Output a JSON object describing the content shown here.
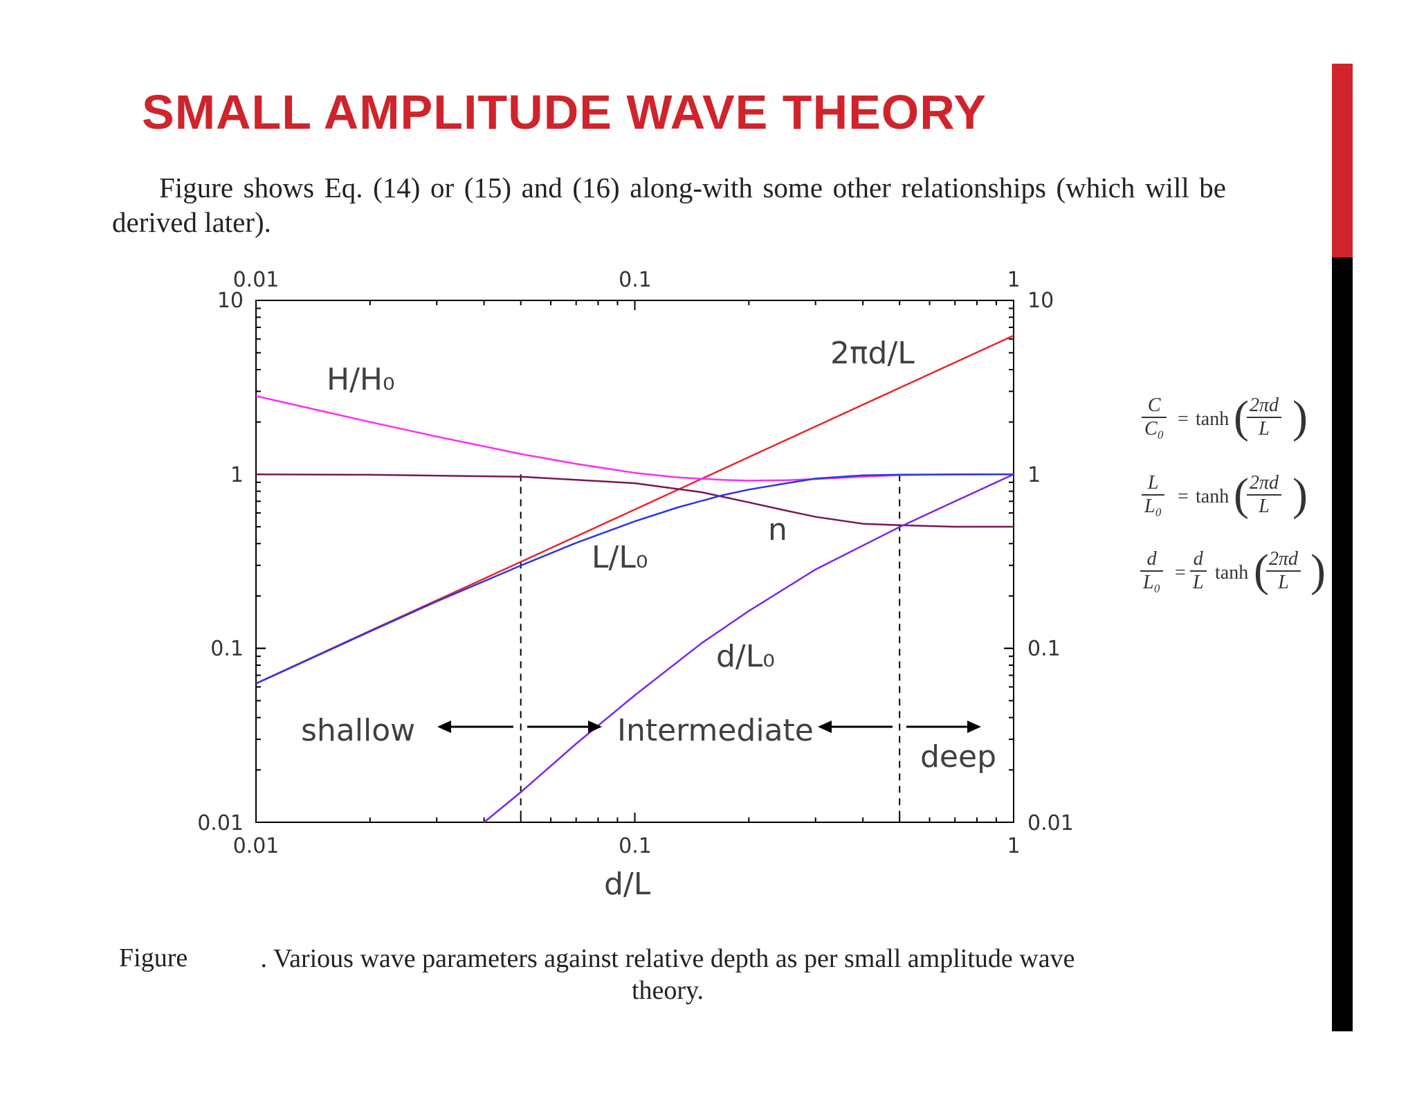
{
  "slide": {
    "title": "SMALL AMPLITUDE WAVE THEORY",
    "intro": "Figure shows Eq. (14) or (15) and (16) along-with some other relationships (which will be derived later).",
    "caption_label": "Figure",
    "caption_text": ". Various wave parameters against relative depth as per small amplitude wave theory.",
    "accent_color": "#d0232b",
    "sidebar_colors": [
      "#d0232b",
      "#000000"
    ]
  },
  "equations": {
    "eq1": {
      "lhs_num": "C",
      "lhs_den": "C₀",
      "eq": "=",
      "func": "tanh",
      "arg_num": "2πd",
      "arg_den": "L"
    },
    "eq2": {
      "lhs_num": "L",
      "lhs_den": "L₀",
      "eq": "=",
      "func": "tanh",
      "arg_num": "2πd",
      "arg_den": "L"
    },
    "eq3": {
      "lhs_num": "d",
      "lhs_den": "L₀",
      "eq": "=",
      "mid_num": "d",
      "mid_den": "L",
      "func": "tanh",
      "arg_num": "2πd",
      "arg_den": "L"
    }
  },
  "chart_data": {
    "type": "line",
    "scale": "log-log",
    "xlabel": "d/L",
    "xlim": [
      0.01,
      1
    ],
    "ylim": [
      0.01,
      10
    ],
    "x_ticks": [
      "0.01",
      "0.1",
      "1"
    ],
    "x_ticks_top": [
      "0.01",
      "0.1",
      "1"
    ],
    "y_ticks_left": [
      "10",
      "1",
      "0.1",
      "0.01"
    ],
    "y_ticks_right": [
      "10",
      "1",
      "0.1",
      "0.01"
    ],
    "grid": false,
    "series": [
      {
        "name": "2πd/L",
        "color": "#e8262b",
        "x": [
          0.01,
          0.02,
          0.05,
          0.1,
          0.2,
          0.5,
          1
        ],
        "y": [
          0.0628,
          0.126,
          0.314,
          0.628,
          1.257,
          3.14,
          6.28
        ]
      },
      {
        "name": "H/H₀",
        "color": "#ff2cf2",
        "x": [
          0.01,
          0.02,
          0.03,
          0.05,
          0.07,
          0.1,
          0.13,
          0.17,
          0.2,
          0.25,
          0.3,
          0.4,
          0.5,
          0.7,
          1
        ],
        "y": [
          2.82,
          2.0,
          1.65,
          1.31,
          1.15,
          1.02,
          0.96,
          0.93,
          0.92,
          0.925,
          0.94,
          0.97,
          0.99,
          1.0,
          1.0
        ]
      },
      {
        "name": "n",
        "color": "#7a1656",
        "x": [
          0.01,
          0.02,
          0.05,
          0.1,
          0.15,
          0.2,
          0.25,
          0.3,
          0.4,
          0.5,
          0.7,
          1
        ],
        "y": [
          0.999,
          0.995,
          0.97,
          0.89,
          0.79,
          0.69,
          0.62,
          0.57,
          0.52,
          0.51,
          0.5,
          0.5
        ]
      },
      {
        "name": "L/L₀",
        "color": "#2b35e6",
        "x": [
          0.01,
          0.02,
          0.03,
          0.05,
          0.07,
          0.1,
          0.13,
          0.17,
          0.2,
          0.25,
          0.3,
          0.4,
          0.5,
          1
        ],
        "y": [
          0.0627,
          0.125,
          0.186,
          0.299,
          0.404,
          0.537,
          0.646,
          0.758,
          0.818,
          0.887,
          0.946,
          0.987,
          0.996,
          1.0
        ]
      },
      {
        "name": "d/L₀",
        "color": "#7b25f0",
        "x": [
          0.04,
          0.05,
          0.07,
          0.1,
          0.15,
          0.2,
          0.3,
          0.5,
          0.7,
          1
        ],
        "y": [
          0.01,
          0.0149,
          0.0283,
          0.0537,
          0.107,
          0.164,
          0.284,
          0.498,
          0.7,
          1.0
        ]
      }
    ],
    "dashed_lines_x": [
      0.05,
      0.5
    ],
    "annotations": {
      "depth_regions": [
        "shallow",
        "Intermediate",
        "deep"
      ]
    }
  }
}
